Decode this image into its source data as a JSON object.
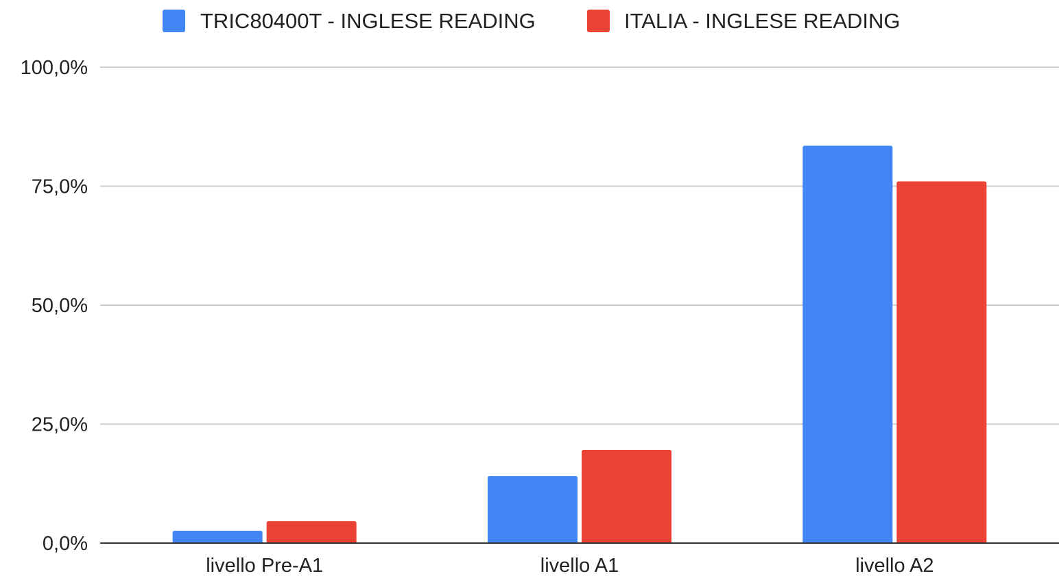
{
  "chart_data": {
    "type": "bar",
    "title": "",
    "xlabel": "",
    "ylabel": "",
    "categories": [
      "livello Pre-A1",
      "livello A1",
      "livello A2"
    ],
    "series": [
      {
        "name": "TRIC80400T - INGLESE READING",
        "color": "#4285f4",
        "values": [
          2.6,
          14.1,
          83.5
        ]
      },
      {
        "name": "ITALIA - INGLESE READING",
        "color": "#ea4335",
        "values": [
          4.6,
          19.6,
          76.0
        ]
      }
    ],
    "y_ticks": [
      "0,0%",
      "25,0%",
      "50,0%",
      "75,0%",
      "100,0%"
    ],
    "y_tick_values": [
      0,
      25,
      50,
      75,
      100
    ],
    "ylim": [
      0,
      100
    ],
    "grid": true,
    "legend_position": "top"
  }
}
